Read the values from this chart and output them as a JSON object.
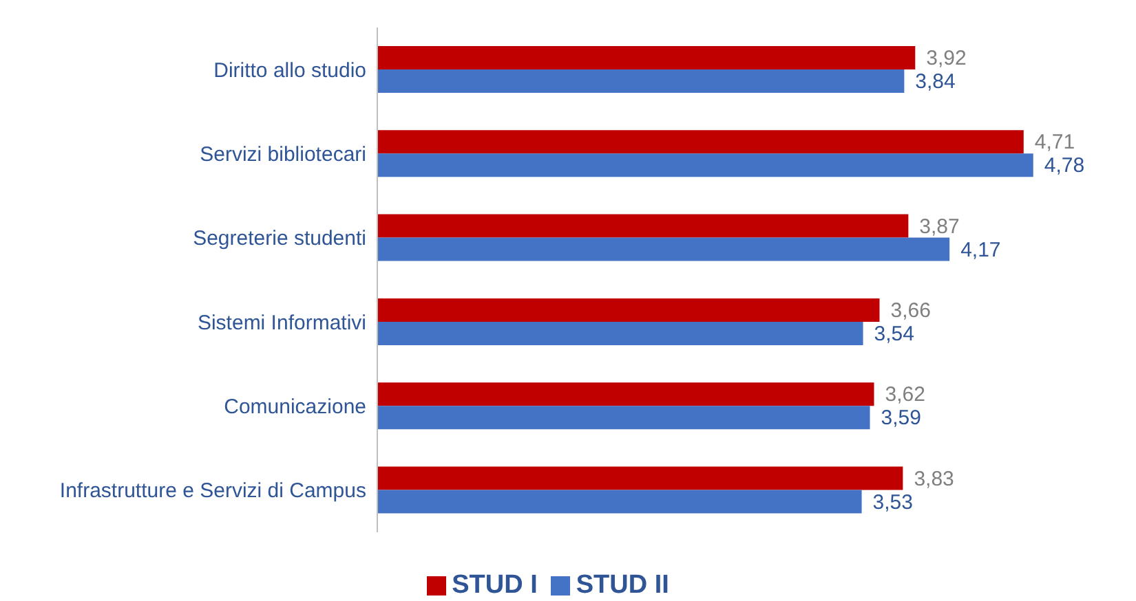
{
  "chart_data": {
    "type": "bar",
    "orientation": "horizontal",
    "categories": [
      "Diritto allo studio",
      "Servizi bibliotecari",
      "Segreterie studenti",
      "Sistemi Informativi",
      "Comunicazione",
      "Infrastrutture e Servizi di Campus"
    ],
    "series": [
      {
        "name": "STUD I",
        "color": "#c00000",
        "values": [
          3.92,
          4.71,
          3.87,
          3.66,
          3.62,
          3.83
        ],
        "value_labels": [
          "3,92",
          "4,71",
          "3,87",
          "3,66",
          "3,62",
          "3,83"
        ]
      },
      {
        "name": "STUD II",
        "color": "#4472c4",
        "values": [
          3.84,
          4.78,
          4.17,
          3.54,
          3.59,
          3.53
        ],
        "value_labels": [
          "3,84",
          "4,78",
          "4,17",
          "3,54",
          "3,59",
          "3,53"
        ]
      }
    ],
    "legend": "bottom",
    "grid": false
  }
}
